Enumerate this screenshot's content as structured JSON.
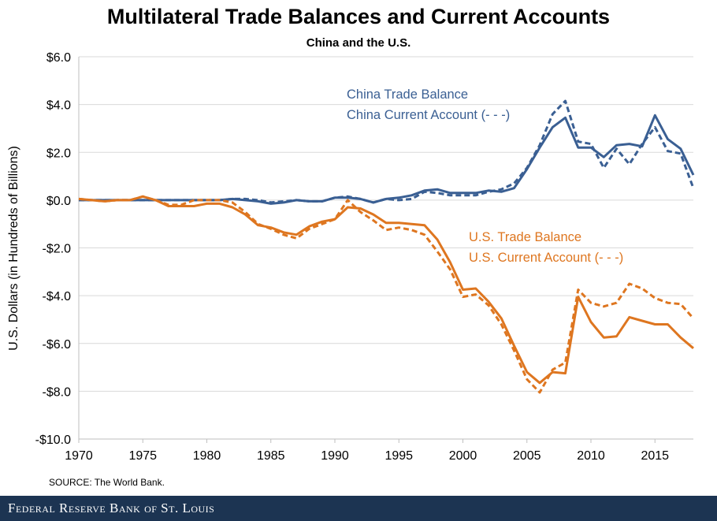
{
  "chart_data": {
    "type": "line",
    "title": "Multilateral Trade Balances and Current Accounts",
    "subtitle": "China and the U.S.",
    "ylabel": "U.S. Dollars (in Hundreds of Billions)",
    "xlabel": "",
    "xlim": [
      1970,
      2018
    ],
    "ylim": [
      -10,
      6
    ],
    "x_ticks": [
      1970,
      1975,
      1980,
      1985,
      1990,
      1995,
      2000,
      2005,
      2010,
      2015
    ],
    "x_tick_labels": [
      "1970",
      "1975",
      "1980",
      "1985",
      "1990",
      "1995",
      "2000",
      "2005",
      "2010",
      "2015"
    ],
    "y_ticks": [
      -10,
      -8,
      -6,
      -4,
      -2,
      0,
      2,
      4,
      6
    ],
    "y_tick_labels": [
      "-$10.0",
      "-$8.0",
      "-$6.0",
      "-$4.0",
      "-$2.0",
      "$0.0",
      "$2.0",
      "$4.0",
      "$6.0"
    ],
    "grid": "horizontal",
    "annotations": [
      {
        "text": "China Trade Balance",
        "series": "china_trade"
      },
      {
        "text": "China Current Account (- - -)",
        "series": "china_current"
      },
      {
        "text": "U.S. Trade Balance",
        "series": "us_trade"
      },
      {
        "text": "U.S. Current Account (- - -)",
        "series": "us_current"
      }
    ],
    "series": [
      {
        "id": "china_trade",
        "color": "#3a5f93",
        "style": "solid",
        "x": [
          1970,
          1971,
          1972,
          1973,
          1974,
          1975,
          1976,
          1977,
          1978,
          1979,
          1980,
          1981,
          1982,
          1983,
          1984,
          1985,
          1986,
          1987,
          1988,
          1989,
          1990,
          1991,
          1992,
          1993,
          1994,
          1995,
          1996,
          1997,
          1998,
          1999,
          2000,
          2001,
          2002,
          2003,
          2004,
          2005,
          2006,
          2007,
          2008,
          2009,
          2010,
          2011,
          2012,
          2013,
          2014,
          2015,
          2016,
          2017,
          2018
        ],
        "values": [
          0,
          0,
          0,
          0,
          0,
          0,
          0,
          0,
          0,
          0,
          0,
          0,
          0.05,
          0,
          -0.05,
          -0.15,
          -0.1,
          0,
          -0.05,
          -0.05,
          0.1,
          0.1,
          0.05,
          -0.1,
          0.05,
          0.1,
          0.2,
          0.4,
          0.45,
          0.3,
          0.3,
          0.3,
          0.4,
          0.35,
          0.5,
          1.3,
          2.2,
          3.05,
          3.45,
          2.2,
          2.2,
          1.8,
          2.3,
          2.35,
          2.25,
          3.55,
          2.55,
          2.15,
          1.05
        ]
      },
      {
        "id": "china_current",
        "color": "#3a5f93",
        "style": "dashed",
        "x": [
          1970,
          1971,
          1972,
          1973,
          1974,
          1975,
          1976,
          1977,
          1978,
          1979,
          1980,
          1981,
          1982,
          1983,
          1984,
          1985,
          1986,
          1987,
          1988,
          1989,
          1990,
          1991,
          1992,
          1993,
          1994,
          1995,
          1996,
          1997,
          1998,
          1999,
          2000,
          2001,
          2002,
          2003,
          2004,
          2005,
          2006,
          2007,
          2008,
          2009,
          2010,
          2011,
          2012,
          2013,
          2014,
          2015,
          2016,
          2017,
          2018
        ],
        "values": [
          0,
          0,
          0,
          0,
          0,
          0,
          0,
          0,
          0,
          0,
          0,
          0,
          0.05,
          0.05,
          0,
          -0.1,
          -0.05,
          0,
          -0.05,
          -0.05,
          0.1,
          0.15,
          0.05,
          -0.1,
          0.05,
          0,
          0.05,
          0.35,
          0.3,
          0.2,
          0.2,
          0.2,
          0.35,
          0.45,
          0.7,
          1.35,
          2.3,
          3.6,
          4.15,
          2.45,
          2.35,
          1.35,
          2.15,
          1.5,
          2.35,
          3.05,
          2.05,
          1.95,
          0.5
        ]
      },
      {
        "id": "us_trade",
        "color": "#de7620",
        "style": "solid",
        "x": [
          1970,
          1971,
          1972,
          1973,
          1974,
          1975,
          1976,
          1977,
          1978,
          1979,
          1980,
          1981,
          1982,
          1983,
          1984,
          1985,
          1986,
          1987,
          1988,
          1989,
          1990,
          1991,
          1992,
          1993,
          1994,
          1995,
          1996,
          1997,
          1998,
          1999,
          2000,
          2001,
          2002,
          2003,
          2004,
          2005,
          2006,
          2007,
          2008,
          2009,
          2010,
          2011,
          2012,
          2013,
          2014,
          2015,
          2016,
          2017,
          2018
        ],
        "values": [
          0.05,
          0,
          -0.05,
          0,
          0,
          0.15,
          0,
          -0.25,
          -0.25,
          -0.25,
          -0.15,
          -0.15,
          -0.3,
          -0.6,
          -1.05,
          -1.15,
          -1.35,
          -1.45,
          -1.1,
          -0.9,
          -0.8,
          -0.3,
          -0.35,
          -0.6,
          -0.95,
          -0.95,
          -1.0,
          -1.05,
          -1.65,
          -2.6,
          -3.75,
          -3.7,
          -4.25,
          -4.95,
          -6.1,
          -7.2,
          -7.65,
          -7.2,
          -7.25,
          -4.05,
          -5.1,
          -5.75,
          -5.7,
          -4.9,
          -5.05,
          -5.2,
          -5.2,
          -5.75,
          -6.2
        ]
      },
      {
        "id": "us_current",
        "color": "#de7620",
        "style": "dashed",
        "x": [
          1970,
          1971,
          1972,
          1973,
          1974,
          1975,
          1976,
          1977,
          1978,
          1979,
          1980,
          1981,
          1982,
          1983,
          1984,
          1985,
          1986,
          1987,
          1988,
          1989,
          1990,
          1991,
          1992,
          1993,
          1994,
          1995,
          1996,
          1997,
          1998,
          1999,
          2000,
          2001,
          2002,
          2003,
          2004,
          2005,
          2006,
          2007,
          2008,
          2009,
          2010,
          2011,
          2012,
          2013,
          2014,
          2015,
          2016,
          2017,
          2018
        ],
        "values": [
          0.05,
          0,
          -0.05,
          0,
          0,
          0.15,
          0,
          -0.2,
          -0.2,
          0,
          0,
          0,
          -0.1,
          -0.5,
          -1.0,
          -1.2,
          -1.45,
          -1.6,
          -1.2,
          -1.0,
          -0.8,
          0,
          -0.5,
          -0.85,
          -1.25,
          -1.15,
          -1.25,
          -1.45,
          -2.15,
          -2.9,
          -4.05,
          -3.95,
          -4.4,
          -5.2,
          -6.3,
          -7.5,
          -8.05,
          -7.1,
          -6.8,
          -3.75,
          -4.3,
          -4.45,
          -4.3,
          -3.5,
          -3.7,
          -4.1,
          -4.3,
          -4.35,
          -4.95
        ]
      }
    ]
  },
  "source": "SOURCE: The World Bank.",
  "footer": "Federal Reserve Bank of St. Louis"
}
